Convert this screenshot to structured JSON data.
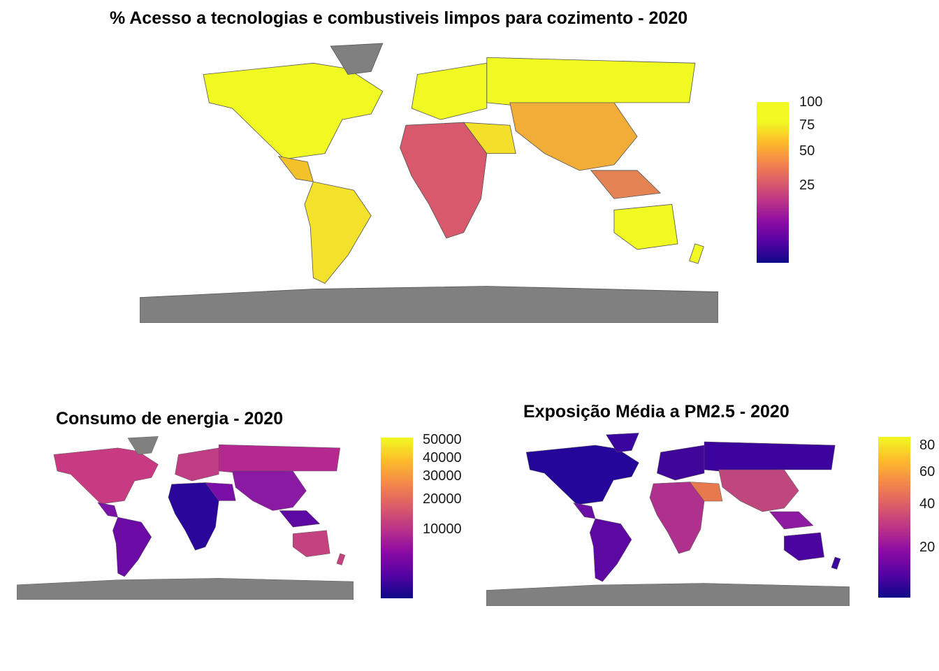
{
  "maps": [
    {
      "id": "clean-cooking",
      "title": "% Acesso a tecnologias e combustiveis limpos para cozimento - 2020",
      "legend_ticks": [
        "100",
        "75",
        "50",
        "25"
      ],
      "legend_values": [
        100,
        75,
        50,
        25
      ],
      "legend_range": [
        0,
        100
      ],
      "legend_scale": "sqrt"
    },
    {
      "id": "energy-consumption",
      "title": "Consumo de energia  - 2020",
      "legend_ticks": [
        "50000",
        "40000",
        "30000",
        "20000",
        "10000"
      ],
      "legend_values": [
        50000,
        40000,
        30000,
        20000,
        10000
      ],
      "legend_range": [
        0,
        50000
      ],
      "legend_scale": "sqrt"
    },
    {
      "id": "pm25-exposure",
      "title": "Exposição Média a PM2.5 - 2020",
      "legend_ticks": [
        "80",
        "60",
        "40",
        "20"
      ],
      "legend_values": [
        80,
        60,
        40,
        20
      ],
      "legend_range": [
        5,
        85
      ],
      "legend_scale": "sqrt"
    }
  ],
  "colors": {
    "palette": "plasma",
    "plasma_low": "#0d0887",
    "plasma_mid": "#cc4778",
    "plasma_high": "#f0f921",
    "missing": "#808080",
    "border": "#555555"
  }
}
